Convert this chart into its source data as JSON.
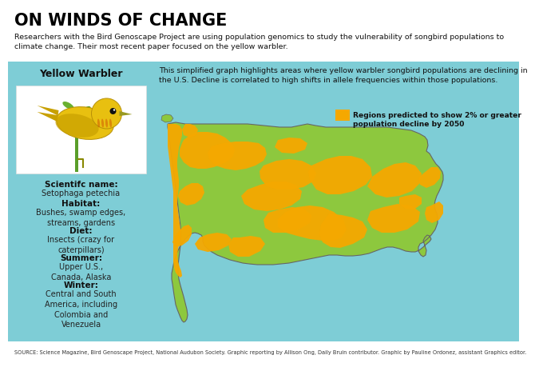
{
  "title": "ON WINDS OF CHANGE",
  "subtitle": "Researchers with the Bird Genoscape Project are using population genomics to study the vulnerability of songbird populations to\nclimate change. Their most recent paper focused on the yellow warbler.",
  "background_color": "#ffffff",
  "panel_bg": "#7ecdd6",
  "title_color": "#000000",
  "subtitle_color": "#111111",
  "left_panel_title": "Yellow Warbler",
  "info_items": [
    {
      "label": "Scientifc name:",
      "text": "Setophaga petechia"
    },
    {
      "label": "Habitat:",
      "text": "Bushes, swamp edges,\nstreams, gardens"
    },
    {
      "label": "Diet:",
      "text": "Insects (crazy for\ncaterpillars)"
    },
    {
      "label": "Summer:",
      "text": "Upper U.S.,\nCanada, Alaska"
    },
    {
      "label": "Winter:",
      "text": "Central and South\nAmerica, including\nColombia and\nVenezuela"
    }
  ],
  "map_description": "This simplified graph highlights areas where yellow warbler songbird populations are declining in\nthe U.S. Decline is correlated to high shifts in allele frequencies within those populations.",
  "legend_label": "Regions predicted to show 2% or greater\npopulation decline by 2050",
  "legend_color": "#f5a800",
  "source_text": "SOURCE: Science Magazine, Bird Genoscape Project, National Audubon Society. Graphic reporting by Allison Ong, Daily Bruin contributor. Graphic by Pauline Ordonez, assistant Graphics editor.",
  "orange_color": "#f5a800",
  "green_color": "#8dc83e",
  "map_bg_color": "#7ecdd6"
}
